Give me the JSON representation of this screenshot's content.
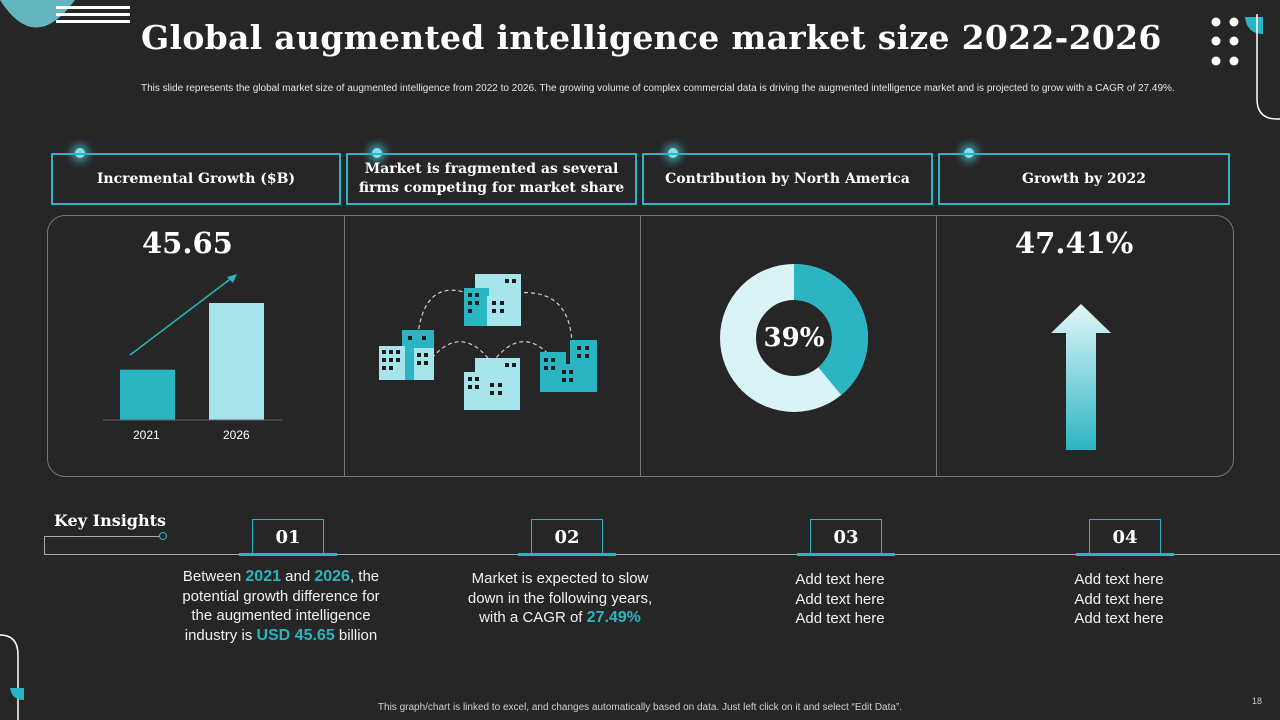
{
  "title": "Global augmented intelligence market size 2022-2026",
  "subtitle": "This slide represents the global market size of augmented intelligence from 2022 to 2026. The growing volume of complex commercial data is driving the augmented intelligence market and is projected to grow with a CAGR of 27.49%.",
  "boxes": [
    {
      "label": "Incremental Growth ($B)"
    },
    {
      "label": "Market is fragmented as several firms competing for market share"
    },
    {
      "label": "Contribution by North America"
    },
    {
      "label": "Growth by 2022"
    }
  ],
  "chart_data": {
    "type": "bar",
    "categories": [
      "2021",
      "2026"
    ],
    "values": [
      0.43,
      1.0
    ],
    "value_label": "45.65"
  },
  "donut": {
    "label": "39%",
    "value": 39,
    "accent": "#2bb5c3",
    "light": "#d9f3f6"
  },
  "growth": {
    "label": "47.41%"
  },
  "key_insights_label": "Key Insights",
  "steps": [
    {
      "num": "01"
    },
    {
      "num": "02"
    },
    {
      "num": "03"
    },
    {
      "num": "04"
    }
  ],
  "insights": {
    "i1": {
      "a": "Between ",
      "b": "2021",
      "c": " and ",
      "d": "2026",
      "e": ", the potential growth difference for the augmented intelligence industry is ",
      "f": "USD 45.65",
      "g": " billion"
    },
    "i2": {
      "a": "Market is expected to slow down in the following years, with a CAGR of ",
      "b": "27.49%"
    },
    "i3": [
      "Add text here",
      "Add text here",
      "Add text here"
    ],
    "i4": [
      "Add text here",
      "Add text here",
      "Add text here"
    ]
  },
  "footer": "This graph/chart is linked to excel, and changes automatically based on data. Just left click on it and select “Edit Data”.",
  "page_number": "18",
  "colors": {
    "accent": "#2bb5c3",
    "background": "#262626",
    "light_bar": "#a6e3ea"
  }
}
